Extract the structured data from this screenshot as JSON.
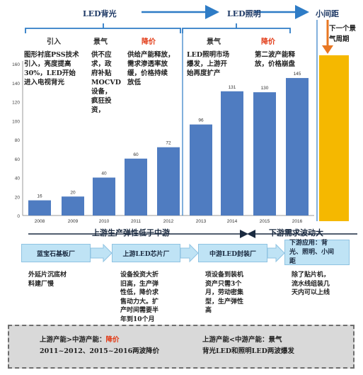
{
  "phases": {
    "backlight": "LED背光",
    "lighting": "LED照明",
    "small_pitch": "小间距"
  },
  "stages": [
    {
      "label": "引入",
      "red": false
    },
    {
      "label": "景气",
      "red": false
    },
    {
      "label": "降价",
      "red": true
    },
    {
      "label": "景气",
      "red": false
    },
    {
      "label": "降价",
      "red": true
    }
  ],
  "descriptions": {
    "d1": [
      "图形衬底PSS技术",
      "引入，亮度提高",
      "30%，LED开始",
      "进入电视背光"
    ],
    "d2": [
      "供不应",
      "求，政",
      "府补贴",
      "MOCVD",
      "设备，",
      "疯狂投",
      "资，"
    ],
    "d3": [
      "供给产能释放，",
      "需求渗透率放",
      "缓，价格持续",
      "放低"
    ],
    "d4": [
      "LED照明市场",
      "爆发，上游开",
      "始再度扩产"
    ],
    "d5": [
      "第二波产能释",
      "放，价格崩盘"
    ],
    "next_cycle": [
      "下一个景",
      "气周期"
    ]
  },
  "chart_data": {
    "type": "bar",
    "categories": [
      "2008",
      "2009",
      "2010",
      "2011",
      "2012",
      "2013",
      "2014",
      "2015",
      "2016"
    ],
    "values": [
      16,
      20,
      40,
      60,
      72,
      96,
      131,
      130,
      145
    ],
    "ylim": [
      0,
      160
    ],
    "yticks": [
      0,
      20,
      40,
      60,
      80,
      100,
      120,
      140,
      160
    ],
    "grid": false,
    "colors": {
      "bar": "#4f7cc1",
      "next_bar": "#f5b800",
      "accent": "#2e7cc6",
      "arrow": "#e87722"
    }
  },
  "lag": {
    "left": "上游生产弹性低于中游",
    "right": "下游需求波动大"
  },
  "flow": {
    "box1": "蓝宝石基板厂",
    "box2": "上游LED芯片厂",
    "box3": "中游LED封装厂",
    "box4": [
      "下游应用：背",
      "光、照明、小间",
      "距"
    ]
  },
  "flow_notes": {
    "n1": [
      "外延片沉底材",
      "料建厂慢"
    ],
    "n2": [
      "设备投资大折",
      "旧高，生产弹",
      "性低，降价求",
      "售动力大。扩",
      "产时间需要半",
      "年到10个月"
    ],
    "n3": [
      "项设备到装机",
      "资产只需3个",
      "月，劳动密集",
      "型，生产弹性",
      "高"
    ],
    "n4": [
      "除了贴片机，",
      "流水线组装几",
      "天内可以上线"
    ]
  },
  "bottom": {
    "line1_prefix": "上游产能>中游产能：",
    "line1_red": "降价",
    "line2": "2011~2012、2015~2016两波降价",
    "line3": "上游产能<中游产能：景气",
    "line4": "背光LED和照明LED两波爆发"
  }
}
